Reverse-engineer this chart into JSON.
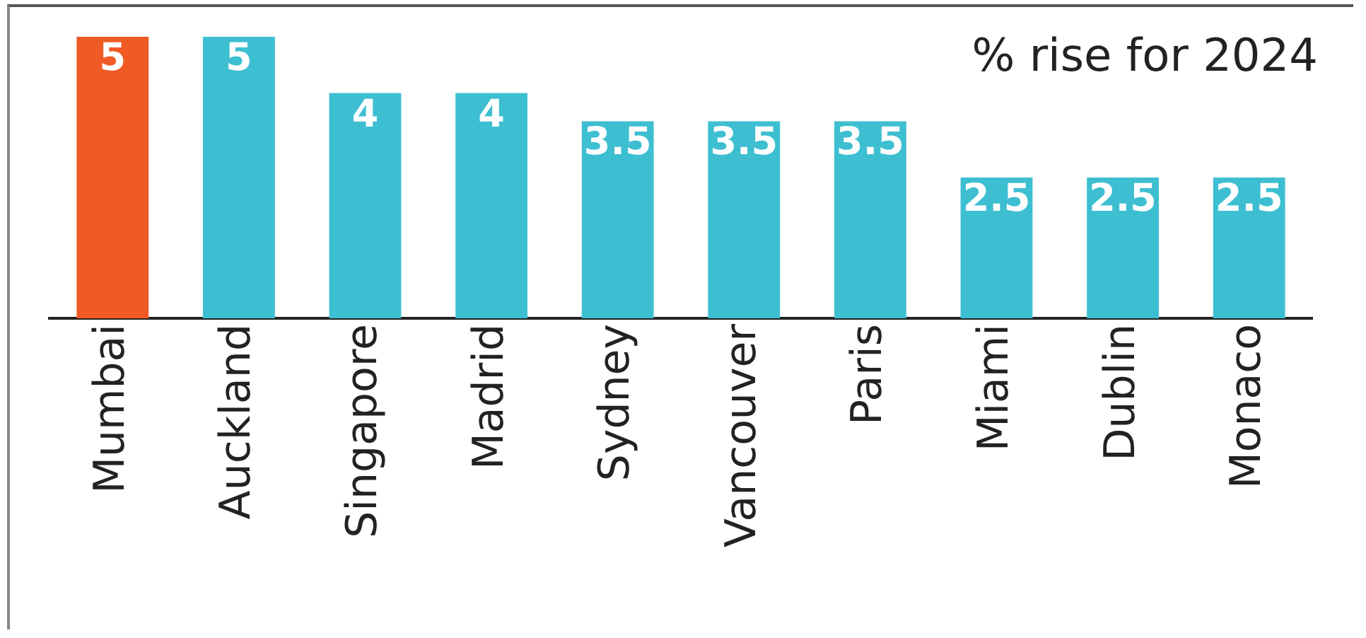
{
  "chart_data": {
    "type": "bar",
    "title": "% rise for 2024",
    "categories": [
      "Mumbai",
      "Auckland",
      "Singapore",
      "Madrid",
      "Sydney",
      "Vancouver",
      "Paris",
      "Miami",
      "Dublin",
      "Monaco"
    ],
    "values": [
      5,
      5,
      4,
      4,
      3.5,
      3.5,
      3.5,
      2.5,
      2.5,
      2.5
    ],
    "colors": [
      "#f05a24",
      "#3dbfd1",
      "#3dbfd1",
      "#3dbfd1",
      "#3dbfd1",
      "#3dbfd1",
      "#3dbfd1",
      "#3dbfd1",
      "#3dbfd1",
      "#3dbfd1"
    ],
    "data_labels": true,
    "legend": false,
    "grid": false
  }
}
